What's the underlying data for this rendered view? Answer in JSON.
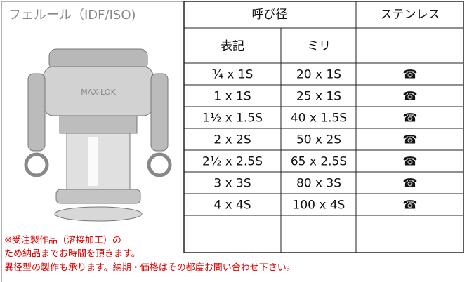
{
  "header": {
    "product": "フェルール（IDF/ISO)",
    "nominal_size": "呼び径",
    "material": "ステンレス",
    "notation": "表記",
    "millimeter": "ミリ"
  },
  "table": {
    "rows": [
      [
        "¾ x 1S",
        "20 x 1S",
        "☎"
      ],
      [
        "1 x 1S",
        "25 x 1S",
        "☎"
      ],
      [
        "1½ x 1.5S",
        "40 x 1.5S",
        "☎"
      ],
      [
        "2 x 2S",
        "50 x 2S",
        "☎"
      ],
      [
        "2½ x 2.5S",
        "65 x 2.5S",
        "☎"
      ],
      [
        "3 x 3S",
        "80 x 3S",
        "☎"
      ],
      [
        "4 x 4S",
        "100 x 4S",
        "☎"
      ]
    ]
  },
  "notes": {
    "made_to_order": "※受注製作品（溶接加工）の",
    "delivery": "ため納品までお時間を頂きます。",
    "reducer": "異径型の製作も承ります。納期・価格はその都度お問い合わせ下さい。"
  }
}
